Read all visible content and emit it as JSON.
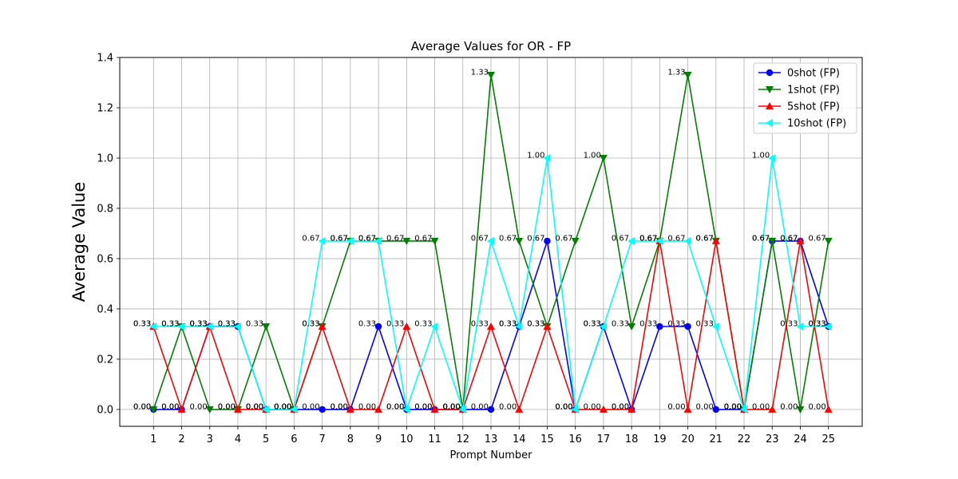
{
  "chart_data": {
    "type": "line",
    "title": "Average Values for OR - FP",
    "xlabel": "Prompt Number",
    "ylabel": "Average Value",
    "x": [
      1,
      2,
      3,
      4,
      5,
      6,
      7,
      8,
      9,
      10,
      11,
      12,
      13,
      14,
      15,
      16,
      17,
      18,
      19,
      20,
      21,
      22,
      23,
      24,
      25
    ],
    "xlim": [
      -0.2,
      26.2
    ],
    "ylim": [
      -0.067,
      1.4
    ],
    "yticks": [
      0.0,
      0.2,
      0.4,
      0.6,
      0.8,
      1.0,
      1.2,
      1.4
    ],
    "ytick_labels": [
      "0.0",
      "0.2",
      "0.4",
      "0.6",
      "0.8",
      "1.0",
      "1.2",
      "1.4"
    ],
    "grid": true,
    "legend_position": "top-right",
    "series": [
      {
        "name": "0shot (FP)",
        "color": "#0000ff",
        "marker": "circle",
        "values": [
          0,
          0,
          0.33,
          0.33,
          0,
          0,
          0,
          0,
          0.33,
          0,
          0,
          0,
          0,
          0.33,
          0.67,
          0,
          0.33,
          0,
          0.33,
          0.33,
          0,
          0,
          0.67,
          0.67,
          0.33
        ],
        "labels": [
          "0.00",
          "0.00",
          "0.33",
          "0.33",
          "0.00",
          "0.00",
          "0.00",
          "0.00",
          "0.33",
          "0.00",
          "0.00",
          "0.00",
          "0.00",
          "0.33",
          "0.67",
          "0.00",
          "0.33",
          "0.00",
          "0.33",
          "0.33",
          "0.00",
          "0.00",
          "0.67",
          "0.67",
          "0.33"
        ]
      },
      {
        "name": "1shot (FP)",
        "color": "#008000",
        "marker": "triangle-down",
        "values": [
          0,
          0.33,
          0,
          0,
          0.33,
          0,
          0.33,
          0.67,
          0.67,
          0.67,
          0.67,
          0,
          1.33,
          0.67,
          0.33,
          0.67,
          1.0,
          0.33,
          0.67,
          1.33,
          0.67,
          0,
          0.67,
          0,
          0.67
        ],
        "labels": [
          "0.00",
          "0.33",
          "0.00",
          "0.00",
          "0.33",
          "0.00",
          "0.33",
          "0.67",
          "0.67",
          "0.67",
          "0.67",
          "0.00",
          "1.33",
          "0.67",
          "0.33",
          "0.67",
          "1.00",
          "0.33",
          "0.67",
          "1.33",
          "0.67",
          "0.00",
          "0.67",
          "0.00",
          "0.67"
        ]
      },
      {
        "name": "5shot (FP)",
        "color": "#ff0000",
        "marker": "triangle-up",
        "values": [
          0.33,
          0,
          0.33,
          0,
          0,
          0,
          0.33,
          0,
          0,
          0.33,
          0,
          0,
          0.33,
          0,
          0.33,
          0,
          0,
          0,
          0.67,
          0,
          0.67,
          0,
          0,
          0.67,
          0
        ],
        "labels": [
          "0.33",
          "0.00",
          "0.33",
          "0.00",
          "0.00",
          "0.00",
          "0.33",
          "0.00",
          "0.00",
          "0.33",
          "0.00",
          "0.00",
          "0.33",
          "0.00",
          "0.33",
          "0.00",
          "0.00",
          "0.00",
          "0.67",
          "0.00",
          "0.67",
          "0.00",
          "0.00",
          "0.67",
          "0.00"
        ]
      },
      {
        "name": "10shot (FP)",
        "color": "#00ffff",
        "marker": "triangle-left",
        "values": [
          0.33,
          0.33,
          0.33,
          0.33,
          0,
          0,
          0.67,
          0.67,
          0.67,
          0,
          0.33,
          0,
          0.67,
          0.33,
          1.0,
          0,
          0.33,
          0.67,
          0.67,
          0.67,
          0.33,
          0,
          1.0,
          0.33,
          0.33
        ],
        "labels": [
          "0.33",
          "0.33",
          "0.33",
          "0.33",
          "0.00",
          "0.00",
          "0.67",
          "0.67",
          "0.67",
          "0.00",
          "0.33",
          "0.00",
          "0.67",
          "0.33",
          "1.00",
          "0.00",
          "0.33",
          "0.67",
          "0.67",
          "0.67",
          "0.33",
          "0.00",
          "1.00",
          "0.33",
          "0.33"
        ]
      }
    ]
  }
}
